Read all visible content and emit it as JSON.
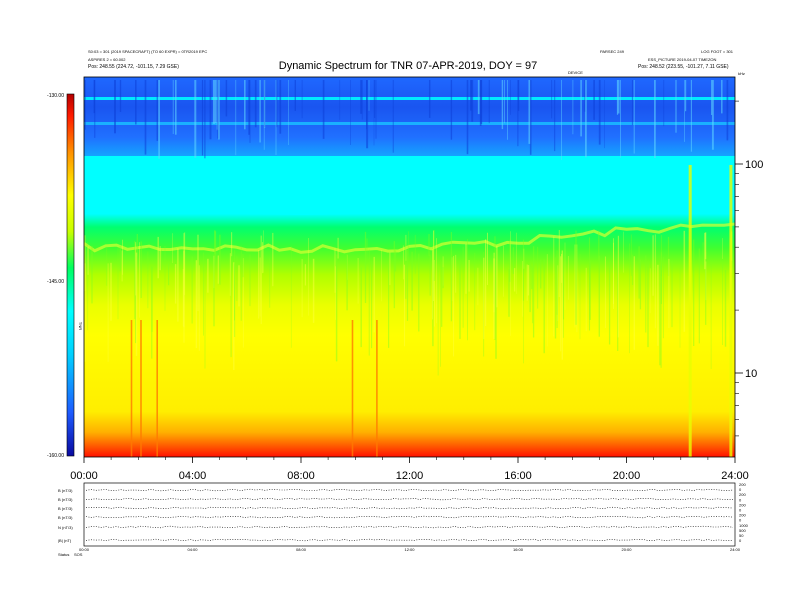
{
  "header": {
    "title": "Dynamic Spectrum for TNR 07-APR-2019, DOY = 97",
    "small_top_left": "S0:03 = 301 (2019 SPACECRAFT) (TO 60 EXPR) = 0TR2019 EPC",
    "small_top_left_2": "ASPIRES 2 = 60.002",
    "small_top_right_a": "PARSEC 249",
    "small_top_right_b": "LOG FOOT = 301",
    "small_top_right_c": "ESS_PICTURE 2019-04-07 TIMEZON",
    "small_center_right": "DEVICE",
    "pos_left": "Pos: 248.55 (224.72, -101.15, 7.29 GSE)",
    "pos_right": "Pos: 248.52 (223.55, -101.27, 7.11 GSE)"
  },
  "colorbar": {
    "ticks": [
      "-130.00",
      "-145.00",
      "-160.00"
    ],
    "label": "TNR"
  },
  "freq_axis": {
    "unit_label": "kHz",
    "ticks": [
      "100",
      "10"
    ]
  },
  "time_axis": {
    "ticks": [
      "00:00",
      "04:00",
      "08:00",
      "12:00",
      "16:00",
      "20:00",
      "24:00"
    ]
  },
  "bottom_panel": {
    "labels": [
      "B (nT/3)",
      "B (nT/3)",
      "B (nT/3)",
      "B (nT/3)",
      "N (nT/3)",
      "|B| (nT)"
    ],
    "right_ticks": [
      "200",
      "0",
      "200",
      "0",
      "200",
      "0",
      "200",
      "0",
      "1000",
      "500",
      "50",
      "0"
    ],
    "time_ticks": [
      "00:00",
      "04:00",
      "08:00",
      "12:00",
      "16:00",
      "20:00",
      "24:00"
    ],
    "status_label": "Status",
    "status_value": "SOS"
  },
  "chart_data": {
    "type": "heatmap",
    "title": "Dynamic Spectrum for TNR 07-APR-2019, DOY = 97",
    "xlabel": "",
    "ylabel": "",
    "x_range_hours": [
      0,
      24
    ],
    "y_axis_scale": "log",
    "y_range_kHz": [
      4,
      245
    ],
    "colorbar_range": [
      -160,
      -130
    ],
    "colorbar_label": "TNR",
    "colormap": [
      "#0a0aa0",
      "#1e5bff",
      "#00c8ff",
      "#00ffff",
      "#00ff60",
      "#d4ff00",
      "#ffff00",
      "#ff7a00",
      "#ff0000",
      "#b40000"
    ],
    "lower_edge_of_cyan_band_kHz": [
      {
        "t": 0,
        "f": 58
      },
      {
        "t": 4,
        "f": 58
      },
      {
        "t": 8,
        "f": 57
      },
      {
        "t": 12,
        "f": 58
      },
      {
        "t": 16,
        "f": 62
      },
      {
        "t": 20,
        "f": 70
      },
      {
        "t": 24,
        "f": 74
      }
    ]
  }
}
